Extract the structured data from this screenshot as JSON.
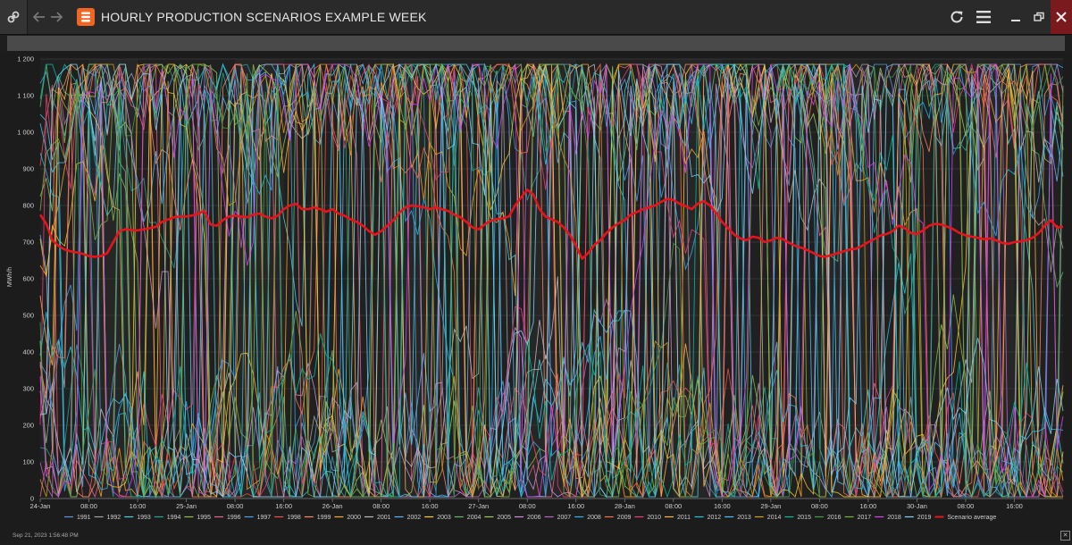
{
  "window": {
    "title": "HOURLY PRODUCTION SCENARIOS EXAMPLE WEEK",
    "link_icon": "link-icon",
    "back_icon": "arrow-left-icon",
    "forward_icon": "arrow-right-icon",
    "logo_icon": "app-logo-icon",
    "refresh_icon": "refresh-icon",
    "menu_icon": "hamburger-menu-icon",
    "minimize_icon": "minimize-icon",
    "restore_icon": "restore-icon",
    "close_icon": "close-icon",
    "close_color": "#7a1a1e",
    "accent_color": "#f26522"
  },
  "footer": {
    "timestamp": "Sep 21, 2023 1:56:48 PM",
    "close_label": "✕"
  },
  "chart_data": {
    "type": "line",
    "ylabel": "MWh/h",
    "ylim": [
      0,
      1200
    ],
    "y_ticks": [
      {
        "value": 0,
        "label": "0"
      },
      {
        "value": 100,
        "label": "100"
      },
      {
        "value": 200,
        "label": "200"
      },
      {
        "value": 300,
        "label": "300"
      },
      {
        "value": 400,
        "label": "400"
      },
      {
        "value": 500,
        "label": "500"
      },
      {
        "value": 600,
        "label": "600"
      },
      {
        "value": 700,
        "label": "700"
      },
      {
        "value": 800,
        "label": "800"
      },
      {
        "value": 900,
        "label": "900"
      },
      {
        "value": 1000,
        "label": "1 000"
      },
      {
        "value": 1100,
        "label": "1 100"
      },
      {
        "value": 1200,
        "label": "1 200"
      }
    ],
    "xlim_hours": [
      0,
      168
    ],
    "x_ticks": [
      {
        "hour": 0,
        "label": "24-Jan"
      },
      {
        "hour": 8,
        "label": "08:00"
      },
      {
        "hour": 16,
        "label": "16:00"
      },
      {
        "hour": 24,
        "label": "25-Jan"
      },
      {
        "hour": 32,
        "label": "08:00"
      },
      {
        "hour": 40,
        "label": "16:00"
      },
      {
        "hour": 48,
        "label": "26-Jan"
      },
      {
        "hour": 56,
        "label": "08:00"
      },
      {
        "hour": 64,
        "label": "16:00"
      },
      {
        "hour": 72,
        "label": "27-Jan"
      },
      {
        "hour": 80,
        "label": "08:00"
      },
      {
        "hour": 88,
        "label": "16:00"
      },
      {
        "hour": 96,
        "label": "28-Jan"
      },
      {
        "hour": 104,
        "label": "08:00"
      },
      {
        "hour": 112,
        "label": "16:00"
      },
      {
        "hour": 120,
        "label": "29-Jan"
      },
      {
        "hour": 128,
        "label": "08:00"
      },
      {
        "hour": 136,
        "label": "16:00"
      },
      {
        "hour": 144,
        "label": "30-Jan"
      },
      {
        "hour": 152,
        "label": "08:00"
      },
      {
        "hour": 160,
        "label": "16:00"
      }
    ],
    "grid": true,
    "background_bands": true,
    "legend_position": "bottom",
    "scenario_years": [
      "1991",
      "1992",
      "1993",
      "1994",
      "1995",
      "1996",
      "1997",
      "1998",
      "1999",
      "2000",
      "2001",
      "2002",
      "2003",
      "2004",
      "2005",
      "2006",
      "2007",
      "2008",
      "2009",
      "2010",
      "2011",
      "2012",
      "2013",
      "2014",
      "2015",
      "2016",
      "2017",
      "2018",
      "2019"
    ],
    "scenario_colors": [
      "#5b9bd5",
      "#a5a5a5",
      "#4dd0e1",
      "#26a69a",
      "#8bc34a",
      "#f06292",
      "#42a5f5",
      "#ef5350",
      "#ff8a65",
      "#ffa726",
      "#bdbdbd",
      "#64b5f6",
      "#ffca28",
      "#66bb6a",
      "#9ccc65",
      "#ce93d8",
      "#ba68c8",
      "#29b6f6",
      "#ff7043",
      "#ec407a",
      "#ffb74d",
      "#26c6da",
      "#4fc3f7",
      "#d4a017",
      "#00bfa5",
      "#43a047",
      "#7cb342",
      "#e040fb",
      "#81d4fa"
    ],
    "series": [
      {
        "name": "Scenario average",
        "color": "#e8141c",
        "points": [
          [
            0,
            775
          ],
          [
            1,
            750
          ],
          [
            2,
            705
          ],
          [
            3,
            690
          ],
          [
            4,
            680
          ],
          [
            5,
            675
          ],
          [
            6,
            672
          ],
          [
            7,
            668
          ],
          [
            8,
            662
          ],
          [
            9,
            660
          ],
          [
            10,
            662
          ],
          [
            11,
            670
          ],
          [
            12,
            700
          ],
          [
            13,
            730
          ],
          [
            14,
            735
          ],
          [
            15,
            733
          ],
          [
            16,
            732
          ],
          [
            17,
            735
          ],
          [
            18,
            738
          ],
          [
            19,
            742
          ],
          [
            20,
            755
          ],
          [
            21,
            762
          ],
          [
            22,
            768
          ],
          [
            23,
            770
          ],
          [
            24,
            770
          ],
          [
            25,
            773
          ],
          [
            26,
            778
          ],
          [
            27,
            785
          ],
          [
            28,
            748
          ],
          [
            29,
            745
          ],
          [
            30,
            760
          ],
          [
            31,
            770
          ],
          [
            32,
            772
          ],
          [
            33,
            770
          ],
          [
            34,
            768
          ],
          [
            35,
            775
          ],
          [
            36,
            778
          ],
          [
            37,
            770
          ],
          [
            38,
            765
          ],
          [
            39,
            772
          ],
          [
            40,
            790
          ],
          [
            41,
            800
          ],
          [
            42,
            805
          ],
          [
            43,
            790
          ],
          [
            44,
            790
          ],
          [
            45,
            795
          ],
          [
            46,
            790
          ],
          [
            47,
            783
          ],
          [
            48,
            790
          ],
          [
            49,
            778
          ],
          [
            50,
            772
          ],
          [
            51,
            762
          ],
          [
            52,
            755
          ],
          [
            53,
            745
          ],
          [
            54,
            730
          ],
          [
            55,
            720
          ],
          [
            56,
            730
          ],
          [
            57,
            745
          ],
          [
            58,
            760
          ],
          [
            59,
            780
          ],
          [
            60,
            795
          ],
          [
            61,
            800
          ],
          [
            62,
            798
          ],
          [
            63,
            795
          ],
          [
            64,
            790
          ],
          [
            65,
            795
          ],
          [
            66,
            790
          ],
          [
            67,
            785
          ],
          [
            68,
            775
          ],
          [
            69,
            768
          ],
          [
            70,
            755
          ],
          [
            71,
            740
          ],
          [
            72,
            735
          ],
          [
            73,
            748
          ],
          [
            74,
            758
          ],
          [
            75,
            763
          ],
          [
            76,
            765
          ],
          [
            77,
            770
          ],
          [
            78,
            800
          ],
          [
            79,
            822
          ],
          [
            80,
            843
          ],
          [
            81,
            830
          ],
          [
            82,
            790
          ],
          [
            83,
            770
          ],
          [
            84,
            762
          ],
          [
            85,
            755
          ],
          [
            86,
            740
          ],
          [
            87,
            720
          ],
          [
            88,
            690
          ],
          [
            89,
            655
          ],
          [
            90,
            670
          ],
          [
            91,
            692
          ],
          [
            92,
            705
          ],
          [
            93,
            725
          ],
          [
            94,
            740
          ],
          [
            95,
            752
          ],
          [
            96,
            760
          ],
          [
            97,
            775
          ],
          [
            98,
            782
          ],
          [
            99,
            790
          ],
          [
            100,
            795
          ],
          [
            101,
            800
          ],
          [
            102,
            810
          ],
          [
            103,
            818
          ],
          [
            104,
            815
          ],
          [
            105,
            805
          ],
          [
            106,
            798
          ],
          [
            107,
            790
          ],
          [
            108,
            805
          ],
          [
            109,
            812
          ],
          [
            110,
            800
          ],
          [
            111,
            780
          ],
          [
            112,
            755
          ],
          [
            113,
            738
          ],
          [
            114,
            720
          ],
          [
            115,
            710
          ],
          [
            116,
            705
          ],
          [
            117,
            715
          ],
          [
            118,
            712
          ],
          [
            119,
            700
          ],
          [
            120,
            705
          ],
          [
            121,
            712
          ],
          [
            122,
            708
          ],
          [
            123,
            698
          ],
          [
            124,
            690
          ],
          [
            125,
            685
          ],
          [
            126,
            678
          ],
          [
            127,
            670
          ],
          [
            128,
            662
          ],
          [
            129,
            660
          ],
          [
            130,
            665
          ],
          [
            131,
            670
          ],
          [
            132,
            675
          ],
          [
            133,
            680
          ],
          [
            134,
            682
          ],
          [
            135,
            690
          ],
          [
            136,
            700
          ],
          [
            137,
            708
          ],
          [
            138,
            718
          ],
          [
            139,
            722
          ],
          [
            140,
            730
          ],
          [
            141,
            745
          ],
          [
            142,
            738
          ],
          [
            143,
            725
          ],
          [
            144,
            722
          ],
          [
            145,
            732
          ],
          [
            146,
            745
          ],
          [
            147,
            750
          ],
          [
            148,
            748
          ],
          [
            149,
            742
          ],
          [
            150,
            735
          ],
          [
            151,
            725
          ],
          [
            152,
            718
          ],
          [
            153,
            715
          ],
          [
            154,
            712
          ],
          [
            155,
            708
          ],
          [
            156,
            710
          ],
          [
            157,
            705
          ],
          [
            158,
            698
          ],
          [
            159,
            695
          ],
          [
            160,
            700
          ],
          [
            161,
            702
          ],
          [
            162,
            705
          ],
          [
            163,
            712
          ],
          [
            164,
            725
          ],
          [
            165,
            745
          ],
          [
            166,
            760
          ],
          [
            167,
            740
          ],
          [
            168,
            742
          ]
        ]
      }
    ],
    "legend_entries": [
      "1991",
      "1992",
      "1993",
      "1994",
      "1995",
      "1996",
      "1997",
      "1998",
      "1999",
      "2000",
      "2001",
      "2002",
      "2003",
      "2004",
      "2005",
      "2006",
      "2007",
      "2008",
      "2009",
      "2010",
      "2011",
      "2012",
      "2013",
      "2014",
      "2015",
      "2016",
      "2017",
      "2018",
      "2019",
      "Scenario average"
    ]
  }
}
